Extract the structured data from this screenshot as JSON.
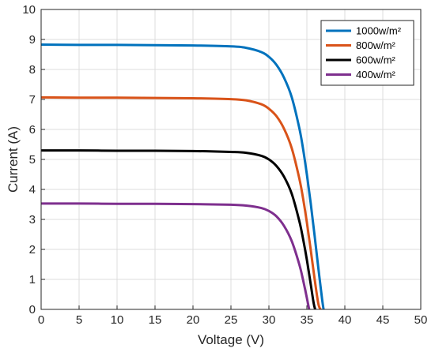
{
  "chart_data": {
    "type": "line",
    "title": "",
    "xlabel": "Voltage (V)",
    "ylabel": "Current (A)",
    "xlim": [
      0,
      50
    ],
    "ylim": [
      0,
      10
    ],
    "xticks": [
      0,
      5,
      10,
      15,
      20,
      25,
      30,
      35,
      40,
      45,
      50
    ],
    "yticks": [
      0,
      1,
      2,
      3,
      4,
      5,
      6,
      7,
      8,
      9,
      10
    ],
    "grid": true,
    "legend_position": "top-right",
    "series": [
      {
        "name": "1000w/m²",
        "color": "#0072BD",
        "x": [
          0,
          5,
          10,
          15,
          20,
          25,
          27,
          29,
          30,
          31,
          32,
          33,
          34,
          34.5,
          35,
          35.5,
          36,
          36.5,
          37,
          37.2
        ],
        "y": [
          8.83,
          8.82,
          8.82,
          8.81,
          8.8,
          8.77,
          8.72,
          8.58,
          8.42,
          8.15,
          7.72,
          7.08,
          6.05,
          5.35,
          4.5,
          3.55,
          2.5,
          1.4,
          0.35,
          0
        ]
      },
      {
        "name": "800w/m²",
        "color": "#D95319",
        "x": [
          0,
          5,
          10,
          15,
          20,
          25,
          27,
          29,
          30,
          31,
          32,
          33,
          34,
          34.5,
          35,
          35.5,
          36,
          36.5,
          36.8
        ],
        "y": [
          7.07,
          7.06,
          7.06,
          7.05,
          7.04,
          7.01,
          6.97,
          6.84,
          6.69,
          6.44,
          6.02,
          5.38,
          4.37,
          3.7,
          2.9,
          2.0,
          1.05,
          0.2,
          0
        ]
      },
      {
        "name": "600w/m²",
        "color": "#000000",
        "x": [
          0,
          5,
          10,
          15,
          20,
          25,
          27,
          29,
          30,
          31,
          32,
          33,
          34,
          34.5,
          35,
          35.5,
          35.9,
          36.1
        ],
        "y": [
          5.3,
          5.3,
          5.29,
          5.29,
          5.28,
          5.25,
          5.22,
          5.12,
          5.0,
          4.78,
          4.42,
          3.86,
          2.95,
          2.35,
          1.65,
          0.85,
          0.2,
          0
        ]
      },
      {
        "name": "400w/m²",
        "color": "#7E2F8E",
        "x": [
          0,
          5,
          10,
          15,
          20,
          25,
          27,
          29,
          30,
          31,
          32,
          33,
          34,
          34.5,
          35,
          35.3
        ],
        "y": [
          3.53,
          3.53,
          3.52,
          3.52,
          3.51,
          3.49,
          3.46,
          3.38,
          3.28,
          3.1,
          2.78,
          2.28,
          1.5,
          0.98,
          0.38,
          0
        ]
      }
    ]
  }
}
